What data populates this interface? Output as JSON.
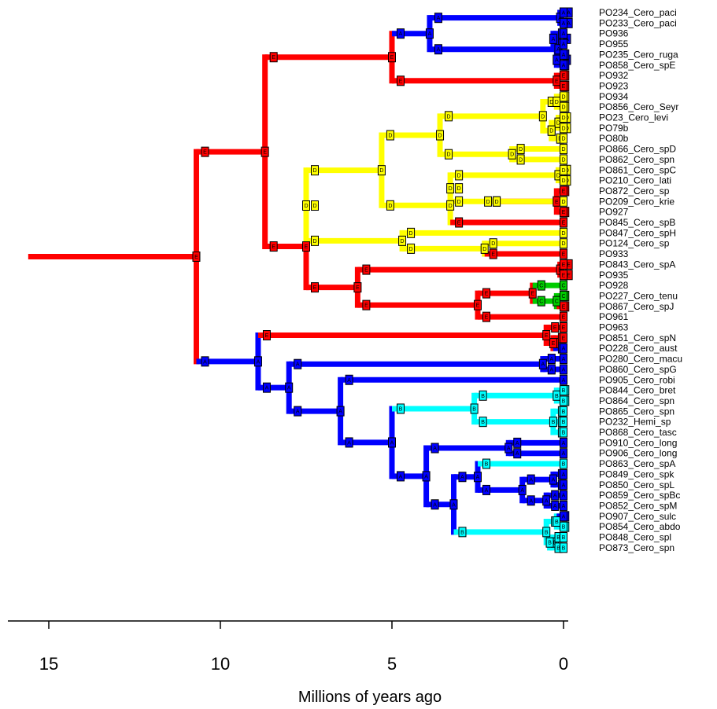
{
  "colors": {
    "E": "#ff0000",
    "D": "#ffff00",
    "A": "#0000ff",
    "B": "#00ffff",
    "C": "#00cc00",
    "background": "#ffffff",
    "axis": "#000000"
  },
  "axis": {
    "title": "Millions of years ago",
    "ticks": [
      "15",
      "10",
      "5",
      "0"
    ],
    "tick_values": [
      15,
      10,
      5,
      0
    ],
    "root_age": 15.6
  },
  "tips": [
    {
      "label": "PO234_Cero_paci",
      "area": "A"
    },
    {
      "label": "PO233_Cero_paci",
      "area": "A"
    },
    {
      "label": "PO936",
      "area": "A"
    },
    {
      "label": "PO955",
      "area": "A"
    },
    {
      "label": "PO235_Cero_ruga",
      "area": "A"
    },
    {
      "label": "PO858_Cero_spE",
      "area": "A"
    },
    {
      "label": "PO932",
      "area": "E"
    },
    {
      "label": "PO923",
      "area": "E"
    },
    {
      "label": "PO934",
      "area": "D"
    },
    {
      "label": "PO856_Cero_Seyr",
      "area": "D"
    },
    {
      "label": "PO23_Cero_levi",
      "area": "D"
    },
    {
      "label": "PO79b",
      "area": "D"
    },
    {
      "label": "PO80b",
      "area": "D"
    },
    {
      "label": "PO866_Cero_spD",
      "area": "D"
    },
    {
      "label": "PO862_Cero_spn",
      "area": "D"
    },
    {
      "label": "PO861_Cero_spC",
      "area": "D"
    },
    {
      "label": "PO210_Cero_lati",
      "area": "D"
    },
    {
      "label": "PO872_Cero_sp",
      "area": "E"
    },
    {
      "label": "PO209_Cero_krie",
      "area": "D"
    },
    {
      "label": "PO927",
      "area": "E"
    },
    {
      "label": "PO845_Cero_spB",
      "area": "E"
    },
    {
      "label": "PO847_Cero_spH",
      "area": "D"
    },
    {
      "label": "PO124_Cero_sp",
      "area": "D"
    },
    {
      "label": "PO933",
      "area": "E"
    },
    {
      "label": "PO843_Cero_spA",
      "area": "E"
    },
    {
      "label": "PO935",
      "area": "E"
    },
    {
      "label": "PO928",
      "area": "C"
    },
    {
      "label": "PO227_Cero_tenu",
      "area": "C"
    },
    {
      "label": "PO867_Cero_spJ",
      "area": "E"
    },
    {
      "label": "PO961",
      "area": "E"
    },
    {
      "label": "PO963",
      "area": "E"
    },
    {
      "label": "PO851_Cero_spN",
      "area": "E"
    },
    {
      "label": "PO228_Cero_aust",
      "area": "A"
    },
    {
      "label": "PO280_Cero_macu",
      "area": "A"
    },
    {
      "label": "PO860_Cero_spG",
      "area": "A"
    },
    {
      "label": "PO905_Cero_robi",
      "area": "A"
    },
    {
      "label": "PO844_Cero_bret",
      "area": "B"
    },
    {
      "label": "PO864_Cero_spn",
      "area": "B"
    },
    {
      "label": "PO865_Cero_spn",
      "area": "B"
    },
    {
      "label": "PO232_Hemi_sp",
      "area": "B"
    },
    {
      "label": "PO868_Cero_tasc",
      "area": "B"
    },
    {
      "label": "PO910_Cero_long",
      "area": "A"
    },
    {
      "label": "PO906_Cero_long",
      "area": "A"
    },
    {
      "label": "PO863_Cero_spA",
      "area": "B"
    },
    {
      "label": "PO849_Cero_spk",
      "area": "A"
    },
    {
      "label": "PO850_Cero_spL",
      "area": "A"
    },
    {
      "label": "PO859_Cero_spBc",
      "area": "A"
    },
    {
      "label": "PO852_Cero_spM",
      "area": "A"
    },
    {
      "label": "PO907_Cero_sulc",
      "area": "A"
    },
    {
      "label": "PO854_Cero_abdo",
      "area": "B"
    },
    {
      "label": "PO848_Cero_spl",
      "area": "B"
    },
    {
      "label": "PO873_Cero_spn",
      "area": "B"
    }
  ],
  "tree": {
    "age": 10.7,
    "state": "E",
    "children": [
      {
        "age": 8.7,
        "state": "E",
        "children": [
          {
            "age": 5.0,
            "state": "E",
            "children": [
              {
                "age": 3.9,
                "state": "A",
                "children": [
                  {
                    "age": 0.1,
                    "state": "A",
                    "children": [
                      {
                        "tip": 0
                      },
                      {
                        "tip": 1
                      }
                    ]
                  },
                  {
                    "age": 0.15,
                    "state": "A",
                    "children": [
                      {
                        "age": 0.3,
                        "state": "A",
                        "children": [
                          {
                            "tip": 2
                          },
                          {
                            "tip": 3
                          }
                        ]
                      },
                      {
                        "age": 0.2,
                        "state": "A",
                        "children": [
                          {
                            "tip": 4
                          },
                          {
                            "tip": 5
                          }
                        ]
                      }
                    ]
                  }
                ]
              },
              {
                "age": 0.2,
                "state": "E",
                "children": [
                  {
                    "tip": 6
                  },
                  {
                    "tip": 7
                  }
                ]
              }
            ]
          },
          {
            "age": 7.5,
            "state": "E",
            "children": [
              {
                "age": 7.5,
                "state": "D",
                "children": [
                  {
                    "age": 5.3,
                    "state": "D",
                    "children": [
                      {
                        "age": 3.6,
                        "state": "D",
                        "children": [
                          {
                            "age": 0.6,
                            "state": "D",
                            "children": [
                              {
                                "age": 0.2,
                                "state": "D",
                                "children": [
                                  {
                                    "tip": 8
                                  },
                                  {
                                    "tip": 9
                                  }
                                ]
                              },
                              {
                                "age": 0.35,
                                "state": "D",
                                "children": [
                                  {
                                    "age": 0.15,
                                    "state": "D",
                                    "children": [
                                      {
                                        "tip": 10
                                      },
                                      {
                                        "tip": 11
                                      }
                                    ]
                                  },
                                  {
                                    "tip": 12
                                  }
                                ]
                              }
                            ]
                          },
                          {
                            "age": 1.5,
                            "state": "D",
                            "children": [
                              {
                                "tip": 13
                              },
                              {
                                "tip": 14
                              }
                            ]
                          }
                        ]
                      },
                      {
                        "age": 3.3,
                        "state": "D",
                        "children": [
                          {
                            "age": 3.3,
                            "state": "D",
                            "children": [
                              {
                                "age": 0.15,
                                "state": "D",
                                "children": [
                                  {
                                    "tip": 15
                                  },
                                  {
                                    "tip": 16
                                  }
                                ]
                              },
                              {
                                "age": 2.2,
                                "state": "D",
                                "children": [
                                  {
                                    "age": 0.2,
                                    "state": "E",
                                    "children": [
                                      {
                                        "tip": 17
                                      },
                                      {
                                        "tip": 19
                                      }
                                    ]
                                  },
                                  {
                                    "tip": 18
                                  }
                                ]
                              }
                            ]
                          },
                          {
                            "tip": 20
                          }
                        ]
                      }
                    ]
                  },
                  {
                    "age": 4.7,
                    "state": "D",
                    "children": [
                      {
                        "tip": 21
                      },
                      {
                        "age": 2.3,
                        "state": "D",
                        "children": [
                          {
                            "tip": 22
                          },
                          {
                            "tip": 23
                          }
                        ]
                      }
                    ]
                  }
                ]
              },
              {
                "age": 6.0,
                "state": "E",
                "children": [
                  {
                    "age": 0.1,
                    "state": "E",
                    "children": [
                      {
                        "tip": 24
                      },
                      {
                        "tip": 25
                      }
                    ]
                  },
                  {
                    "age": 2.5,
                    "state": "E",
                    "children": [
                      {
                        "age": 0.9,
                        "state": "E",
                        "children": [
                          {
                            "tip": 26
                          },
                          {
                            "age": 0.2,
                            "state": "C",
                            "children": [
                              {
                                "tip": 27
                              },
                              {
                                "tip": 28
                              }
                            ]
                          }
                        ]
                      },
                      {
                        "tip": 29
                      }
                    ]
                  }
                ]
              }
            ]
          }
        ]
      },
      {
        "age": 8.9,
        "state": "A",
        "children": [
          {
            "age": 0.5,
            "state": "E",
            "children": [
              {
                "tip": 30
              },
              {
                "age": 0.3,
                "state": "E",
                "children": [
                  {
                    "tip": 31
                  },
                  {
                    "tip": 32
                  }
                ]
              }
            ]
          },
          {
            "age": 8.0,
            "state": "A",
            "children": [
              {
                "age": 0.6,
                "state": "A",
                "children": [
                  {
                    "tip": 33
                  },
                  {
                    "tip": 34
                  }
                ]
              },
              {
                "age": 6.5,
                "state": "A",
                "children": [
                  {
                    "tip": 35
                  },
                  {
                    "age": 5.0,
                    "state": "A",
                    "children": [
                      {
                        "age": 2.6,
                        "state": "B",
                        "children": [
                          {
                            "age": 0.2,
                            "state": "B",
                            "children": [
                              {
                                "tip": 36
                              },
                              {
                                "tip": 37
                              }
                            ]
                          },
                          {
                            "age": 0.3,
                            "state": "B",
                            "children": [
                              {
                                "tip": 38
                              },
                              {
                                "tip": 39
                              },
                              {
                                "tip": 40
                              }
                            ]
                          }
                        ]
                      },
                      {
                        "age": 4.0,
                        "state": "A",
                        "children": [
                          {
                            "age": 1.6,
                            "state": "A",
                            "children": [
                              {
                                "tip": 41
                              },
                              {
                                "tip": 42
                              }
                            ]
                          },
                          {
                            "age": 3.2,
                            "state": "A",
                            "children": [
                              {
                                "age": 2.5,
                                "state": "A",
                                "children": [
                                  {
                                    "tip": 43
                                  },
                                  {
                                    "age": 1.2,
                                    "state": "A",
                                    "children": [
                                      {
                                        "age": 0.3,
                                        "state": "A",
                                        "children": [
                                          {
                                            "tip": 44
                                          },
                                          {
                                            "tip": 45
                                          }
                                        ]
                                      },
                                      {
                                        "age": 0.5,
                                        "state": "A",
                                        "children": [
                                          {
                                            "tip": 46
                                          },
                                          {
                                            "tip": 47
                                          }
                                        ]
                                      }
                                    ]
                                  }
                                ]
                              },
                              {
                                "age": 0.5,
                                "state": "B",
                                "children": [
                                  {
                                    "age": 0.2,
                                    "state": "B",
                                    "children": [
                                      {
                                        "tip": 48
                                      },
                                      {
                                        "tip": 49
                                      }
                                    ]
                                  },
                                  {
                                    "age": 0.4,
                                    "state": "B",
                                    "children": [
                                      {
                                        "tip": 50
                                      },
                                      {
                                        "tip": 51
                                      }
                                    ]
                                  }
                                ]
                              }
                            ]
                          }
                        ]
                      }
                    ]
                  }
                ]
              }
            ]
          }
        ]
      }
    ]
  }
}
